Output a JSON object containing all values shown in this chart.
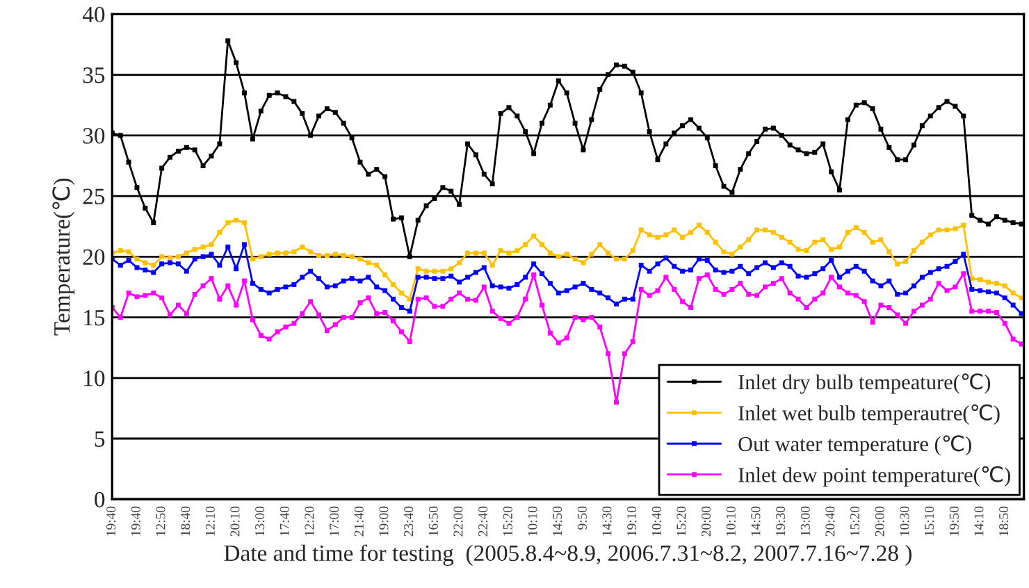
{
  "chart_data": {
    "type": "line",
    "ylabel": "Temperature(℃)",
    "xlabel": "Date and time for testing  (2005.8.4~8.9, 2006.7.31~8.2, 2007.7.16~7.28 )",
    "categories": [
      "19:40",
      null,
      null,
      "19:40",
      null,
      null,
      "12:50",
      null,
      null,
      "18:40",
      null,
      null,
      "12:10",
      null,
      null,
      "20:10",
      null,
      null,
      "13:00",
      null,
      null,
      "17:40",
      null,
      null,
      "12:20",
      null,
      null,
      "17:00",
      null,
      null,
      "21:40",
      null,
      null,
      "19:00",
      null,
      null,
      "23:40",
      null,
      null,
      "16:50",
      null,
      null,
      "22:00",
      null,
      null,
      "22:40",
      null,
      null,
      "15:20",
      null,
      null,
      "10:10",
      null,
      null,
      "14:50",
      null,
      null,
      "9:50",
      null,
      null,
      "14:30",
      null,
      null,
      "19:10",
      null,
      null,
      "10:40",
      null,
      null,
      "15:20",
      null,
      null,
      "20:00",
      null,
      null,
      "10:10",
      null,
      null,
      "14:50",
      null,
      null,
      "19:30",
      null,
      null,
      "13:00",
      null,
      null,
      "20:40",
      null,
      null,
      "15:20",
      null,
      null,
      "20:00",
      null,
      null,
      "10:30",
      null,
      null,
      "15:10",
      null,
      null,
      "19:50",
      null,
      null,
      "14:10",
      null,
      null,
      "18:50",
      null,
      null
    ],
    "series": [
      {
        "name": "Inlet dry bulb tempeature(℃)",
        "color": "#000000",
        "values": [
          30.2,
          30,
          27.8,
          25.7,
          24,
          22.8,
          27.3,
          28.2,
          28.7,
          29,
          28.8,
          27.5,
          28.3,
          29.3,
          37.8,
          36,
          33.5,
          29.7,
          32,
          33.3,
          33.5,
          33.2,
          32.8,
          31.8,
          30,
          31.6,
          32.2,
          31.9,
          31,
          29.8,
          27.8,
          26.8,
          27.2,
          26.6,
          23.1,
          23.2,
          20,
          23,
          24.2,
          24.8,
          25.7,
          25.4,
          24.3,
          29.3,
          28.4,
          26.8,
          26,
          31.8,
          32.3,
          31.6,
          30.3,
          28.5,
          31,
          32.5,
          34.5,
          33.5,
          31,
          28.8,
          31.3,
          33.8,
          35,
          35.8,
          35.7,
          35.2,
          33.5,
          30.3,
          28,
          29.3,
          30.2,
          30.8,
          31.3,
          30.6,
          29.8,
          27.5,
          25.8,
          25.3,
          27.2,
          28.5,
          29.5,
          30.5,
          30.6,
          30,
          29.2,
          28.8,
          28.5,
          28.6,
          29.3,
          27,
          25.5,
          31.3,
          32.5,
          32.7,
          32.2,
          30.5,
          29,
          28,
          28,
          29.2,
          30.8,
          31.6,
          32.3,
          32.8,
          32.4,
          31.6,
          23.4,
          23,
          22.7,
          23.3,
          23,
          22.8,
          22.7
        ]
      },
      {
        "name": "Inlet wet bulb temperautre(℃)",
        "color": "#ffc000",
        "values": [
          20.3,
          20.5,
          20.4,
          19.8,
          19.5,
          19.3,
          20,
          19.9,
          20,
          20.3,
          20.6,
          20.8,
          21,
          22,
          22.8,
          23,
          22.8,
          19.8,
          20,
          20.2,
          20.3,
          20.3,
          20.4,
          20.8,
          20.4,
          20.1,
          20.1,
          20.2,
          20.1,
          20,
          19.8,
          19.5,
          19.3,
          18.5,
          17.7,
          17,
          16.5,
          19,
          18.8,
          18.8,
          18.8,
          19,
          19.5,
          20.3,
          20.3,
          20.3,
          19.3,
          20.5,
          20.3,
          20.5,
          21,
          21.7,
          21,
          20.3,
          20,
          20.2,
          19.8,
          19.5,
          20.2,
          21,
          20.3,
          19.8,
          19.8,
          20.5,
          22.2,
          21.8,
          21.6,
          21.8,
          22.2,
          21.6,
          22,
          22.6,
          22,
          21.2,
          20.4,
          20.2,
          20.8,
          21.4,
          22.2,
          22.2,
          22,
          21.6,
          21.2,
          20.6,
          20.5,
          21.2,
          21.4,
          20.6,
          20.8,
          22,
          22.4,
          22,
          21.2,
          21.4,
          20.4,
          19.4,
          19.6,
          20.5,
          21.2,
          21.8,
          22.2,
          22.2,
          22.3,
          22.6,
          18.2,
          18.1,
          17.9,
          17.8,
          17.6,
          17,
          16.6
        ]
      },
      {
        "name": "Out water temperature (℃)",
        "color": "#0000ff",
        "values": [
          19.8,
          19.3,
          19.7,
          19.1,
          18.9,
          18.7,
          19.4,
          19.5,
          19.4,
          18.8,
          19.8,
          20,
          20.2,
          19.3,
          20.8,
          19,
          21,
          17.8,
          17.3,
          17,
          17.3,
          17.5,
          17.7,
          18.3,
          18.8,
          18.2,
          17.5,
          17.6,
          18,
          18.2,
          18,
          18.3,
          17.5,
          17.2,
          16.5,
          15.8,
          15.5,
          18.3,
          18.3,
          18.2,
          18.2,
          18.4,
          17.9,
          18.3,
          18.7,
          19.1,
          17.6,
          17.5,
          17.4,
          17.7,
          18.3,
          19.4,
          18.6,
          17.8,
          17,
          17.2,
          17.5,
          17.8,
          17.3,
          17,
          16.6,
          16.1,
          16.5,
          16.5,
          19.3,
          18.8,
          19.4,
          19.9,
          19.2,
          18.8,
          18.9,
          19.8,
          19.7,
          18.9,
          18.7,
          18.8,
          19.2,
          18.6,
          19.1,
          19.5,
          19.1,
          19.5,
          19.2,
          18.4,
          18.3,
          18.6,
          19,
          19.7,
          18.3,
          18.8,
          19.2,
          18.8,
          18,
          17.6,
          18,
          16.9,
          17,
          17.6,
          18.3,
          18.7,
          19,
          19.2,
          19.6,
          20.2,
          17.3,
          17.2,
          17.1,
          17,
          16.6,
          16,
          15.3
        ]
      },
      {
        "name": "Inlet dew point temperature(℃)",
        "color": "#ff00ff",
        "values": [
          15.8,
          15,
          17,
          16.7,
          16.8,
          17,
          16.6,
          15.2,
          16,
          15.3,
          16.9,
          17.6,
          18.2,
          16.5,
          17.6,
          16,
          18,
          14.8,
          13.5,
          13.2,
          13.8,
          14.2,
          14.5,
          15.3,
          16.3,
          15.2,
          13.9,
          14.4,
          15,
          15,
          16.2,
          16.6,
          15.3,
          15.4,
          14.7,
          13.8,
          13,
          16.5,
          16.6,
          15.9,
          15.9,
          16.5,
          17,
          16.5,
          16.4,
          17.5,
          15.5,
          14.9,
          14.5,
          15,
          16.5,
          18.5,
          16,
          13.7,
          12.9,
          13.3,
          15,
          14.8,
          15,
          14.2,
          12,
          8,
          12,
          13,
          17.3,
          16.8,
          17.2,
          18.3,
          17.3,
          16.3,
          15.8,
          18.2,
          18.5,
          17.3,
          16.9,
          17.3,
          17.8,
          16.9,
          16.8,
          17.5,
          17.8,
          18.2,
          17,
          16.5,
          15.8,
          16.5,
          17,
          18.3,
          17.5,
          17,
          16.8,
          16.3,
          14.6,
          16,
          15.8,
          15.2,
          14.5,
          15.5,
          16,
          16.5,
          17.8,
          17.2,
          17.5,
          18.6,
          15.5,
          15.5,
          15.5,
          15.4,
          14.5,
          13.2,
          12.8
        ]
      }
    ],
    "ylim": [
      0,
      40
    ],
    "yticks": [
      0,
      5,
      10,
      15,
      20,
      25,
      30,
      35,
      40
    ],
    "grid": "y",
    "legend": "lower right",
    "marker": "square",
    "line_style": "solid"
  }
}
